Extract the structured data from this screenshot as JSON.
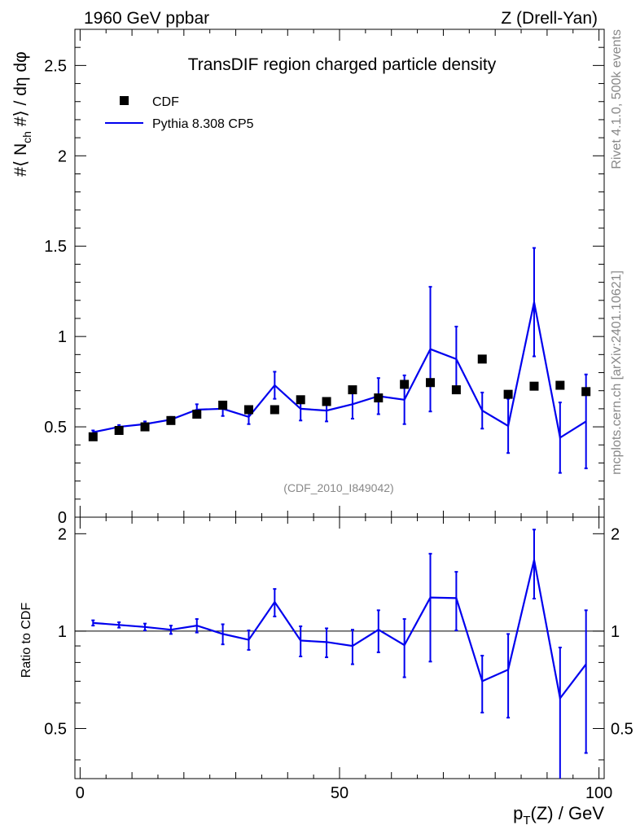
{
  "header": {
    "left": "1960 GeV ppbar",
    "right": "Z (Drell-Yan)"
  },
  "side_texts": {
    "rivet": "Rivet 4.1.0,  500k events",
    "mcplots": "mcplots.cern.ch [arXiv:2401.10621]"
  },
  "watermark": "(CDF_2010_I849042)",
  "colors": {
    "mc": "#0000ee",
    "data": "#000000",
    "grey": "#888888"
  },
  "chart_data": {
    "type": "line",
    "title": "TransDIF region charged particle density",
    "xlabel": "p_T(Z) / GeV",
    "ylabel": "#⟨ N_ch #⟩ / dη dφ",
    "ratio_ylabel": "Ratio to CDF",
    "xlim": [
      -1,
      101
    ],
    "ylim": [
      0,
      2.7
    ],
    "ratio_ylim": [
      0.35,
      2.25
    ],
    "x_ticks": [
      0,
      50,
      100
    ],
    "y_ticks": [
      0,
      0.5,
      1,
      1.5,
      2,
      2.5
    ],
    "y_tick_labels": [
      "0",
      "0.5",
      "1",
      "1.5",
      "2",
      "2.5"
    ],
    "ratio_ticks": [
      0.5,
      1,
      2
    ],
    "ratio_tick_labels": [
      "0.5",
      "1",
      "2"
    ],
    "legend": {
      "position": "top-left",
      "entries": [
        "CDF",
        "Pythia 8.308 CP5"
      ]
    },
    "x": [
      2.5,
      7.5,
      12.5,
      17.5,
      22.5,
      27.5,
      32.5,
      37.5,
      42.5,
      47.5,
      52.5,
      57.5,
      62.5,
      67.5,
      72.5,
      77.5,
      82.5,
      87.5,
      92.5,
      97.5
    ],
    "series": [
      {
        "name": "CDF",
        "style": "markers",
        "values": [
          0.445,
          0.48,
          0.5,
          0.535,
          0.57,
          0.62,
          0.595,
          0.595,
          0.65,
          0.64,
          0.705,
          0.66,
          0.735,
          0.745,
          0.705,
          0.875,
          0.68,
          0.725,
          0.73,
          0.695
        ]
      },
      {
        "name": "Pythia 8.308 CP5",
        "style": "line",
        "values": [
          0.47,
          0.5,
          0.515,
          0.54,
          0.595,
          0.6,
          0.555,
          0.73,
          0.6,
          0.59,
          0.625,
          0.67,
          0.65,
          0.93,
          0.875,
          0.59,
          0.505,
          1.19,
          0.44,
          0.53
        ],
        "errors": [
          0.01,
          0.01,
          0.015,
          0.015,
          0.03,
          0.04,
          0.04,
          0.075,
          0.065,
          0.06,
          0.08,
          0.1,
          0.135,
          0.345,
          0.18,
          0.1,
          0.15,
          0.3,
          0.195,
          0.26
        ]
      }
    ],
    "ratio": {
      "values": [
        1.06,
        1.045,
        1.03,
        1.01,
        1.04,
        0.98,
        0.94,
        1.23,
        0.935,
        0.925,
        0.9,
        1.01,
        0.905,
        1.27,
        1.265,
        0.7,
        0.76,
        1.66,
        0.62,
        0.79
      ],
      "errors": [
        0.02,
        0.02,
        0.025,
        0.03,
        0.05,
        0.07,
        0.065,
        0.12,
        0.1,
        0.095,
        0.11,
        0.15,
        0.185,
        0.465,
        0.26,
        0.14,
        0.22,
        0.4,
        0.27,
        0.37
      ]
    }
  }
}
